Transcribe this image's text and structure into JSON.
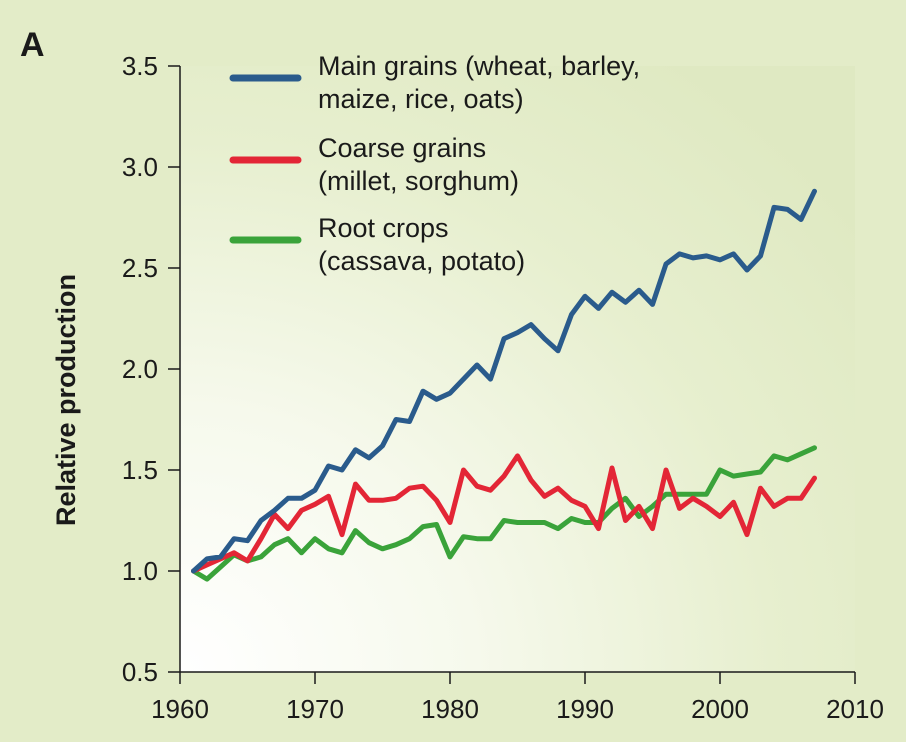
{
  "panel_label": "A",
  "chart_data": {
    "type": "line",
    "title": "",
    "xlabel": "",
    "ylabel": "Relative production",
    "xlim": [
      1960,
      2010
    ],
    "ylim": [
      0.5,
      3.5
    ],
    "x_ticks": [
      "1960",
      "1970",
      "1980",
      "1990",
      "2000",
      "2010"
    ],
    "y_ticks": [
      "0.5",
      "1.0",
      "1.5",
      "2.0",
      "2.5",
      "3.0",
      "3.5"
    ],
    "grid": false,
    "legend_position": "top-left",
    "legend": [
      {
        "lines": [
          "Main grains (wheat, barley,",
          "maize, rice, oats)"
        ],
        "color": "#2a5b8c"
      },
      {
        "lines": [
          "Coarse grains",
          "(millet, sorghum)"
        ],
        "color": "#e32636"
      },
      {
        "lines": [
          "Root crops",
          "(cassava, potato)"
        ],
        "color": "#3aa33a"
      }
    ],
    "x": [
      1961,
      1962,
      1963,
      1964,
      1965,
      1966,
      1967,
      1968,
      1969,
      1970,
      1971,
      1972,
      1973,
      1974,
      1975,
      1976,
      1977,
      1978,
      1979,
      1980,
      1981,
      1982,
      1983,
      1984,
      1985,
      1986,
      1987,
      1988,
      1989,
      1990,
      1991,
      1992,
      1993,
      1994,
      1995,
      1996,
      1997,
      1998,
      1999,
      2000,
      2001,
      2002,
      2003,
      2004,
      2005,
      2006,
      2007
    ],
    "series": [
      {
        "name": "Main grains (wheat, barley, maize, rice, oats)",
        "color": "#2a5b8c",
        "values": [
          1.0,
          1.06,
          1.07,
          1.16,
          1.15,
          1.25,
          1.3,
          1.36,
          1.36,
          1.4,
          1.52,
          1.5,
          1.6,
          1.56,
          1.62,
          1.75,
          1.74,
          1.89,
          1.85,
          1.88,
          1.95,
          2.02,
          1.95,
          2.15,
          2.18,
          2.22,
          2.15,
          2.09,
          2.27,
          2.36,
          2.3,
          2.38,
          2.33,
          2.39,
          2.32,
          2.52,
          2.57,
          2.55,
          2.56,
          2.54,
          2.57,
          2.49,
          2.56,
          2.8,
          2.79,
          2.74,
          2.88
        ]
      },
      {
        "name": "Coarse grains (millet, sorghum)",
        "color": "#e32636",
        "values": [
          1.0,
          1.03,
          1.06,
          1.09,
          1.05,
          1.16,
          1.28,
          1.21,
          1.3,
          1.33,
          1.37,
          1.18,
          1.43,
          1.35,
          1.35,
          1.36,
          1.41,
          1.42,
          1.35,
          1.24,
          1.5,
          1.42,
          1.4,
          1.47,
          1.57,
          1.45,
          1.37,
          1.41,
          1.35,
          1.32,
          1.21,
          1.51,
          1.25,
          1.32,
          1.21,
          1.5,
          1.31,
          1.36,
          1.32,
          1.27,
          1.34,
          1.18,
          1.41,
          1.32,
          1.36,
          1.36,
          1.46
        ]
      },
      {
        "name": "Root crops (cassava, potato)",
        "color": "#3aa33a",
        "values": [
          1.0,
          0.96,
          1.02,
          1.08,
          1.05,
          1.07,
          1.13,
          1.16,
          1.09,
          1.16,
          1.11,
          1.09,
          1.2,
          1.14,
          1.11,
          1.13,
          1.16,
          1.22,
          1.23,
          1.07,
          1.17,
          1.16,
          1.16,
          1.25,
          1.24,
          1.24,
          1.24,
          1.21,
          1.26,
          1.24,
          1.24,
          1.31,
          1.36,
          1.27,
          1.32,
          1.38,
          1.38,
          1.38,
          1.38,
          1.5,
          1.47,
          1.48,
          1.49,
          1.57,
          1.55,
          1.58,
          1.61
        ]
      }
    ]
  }
}
